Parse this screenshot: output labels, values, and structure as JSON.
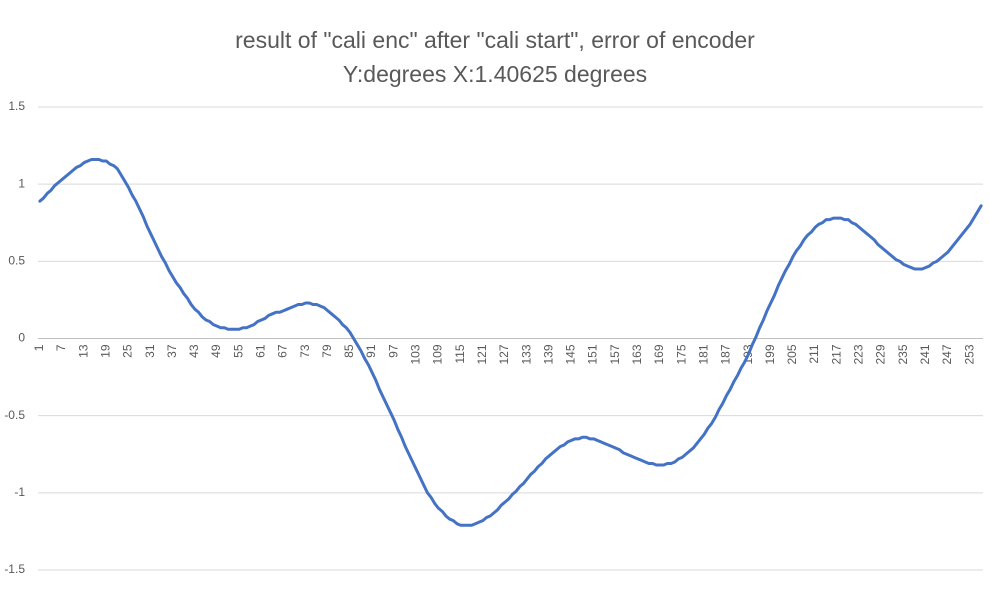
{
  "chart_data": {
    "type": "line",
    "title": "result of \"cali enc\" after \"cali start\", error of encoder",
    "subtitle": "Y:degrees X:1.40625 degrees",
    "categories": [
      1,
      null,
      null,
      null,
      null,
      null,
      7,
      null,
      null,
      null,
      null,
      null,
      13,
      null,
      null,
      null,
      null,
      null,
      19,
      null,
      null,
      null,
      null,
      null,
      25,
      null,
      null,
      null,
      null,
      null,
      31,
      null,
      null,
      null,
      null,
      null,
      37,
      null,
      null,
      null,
      null,
      null,
      43,
      null,
      null,
      null,
      null,
      null,
      49,
      null,
      null,
      null,
      null,
      null,
      55,
      null,
      null,
      null,
      null,
      null,
      61,
      null,
      null,
      null,
      null,
      null,
      67,
      null,
      null,
      null,
      null,
      null,
      73,
      null,
      null,
      null,
      null,
      null,
      79,
      null,
      null,
      null,
      null,
      null,
      85,
      null,
      null,
      null,
      null,
      null,
      91,
      null,
      null,
      null,
      null,
      null,
      97,
      null,
      null,
      null,
      null,
      null,
      103,
      null,
      null,
      null,
      null,
      null,
      109,
      null,
      null,
      null,
      null,
      null,
      115,
      null,
      null,
      null,
      null,
      null,
      121,
      null,
      null,
      null,
      null,
      null,
      127,
      null,
      null,
      null,
      null,
      null,
      133,
      null,
      null,
      null,
      null,
      null,
      139,
      null,
      null,
      null,
      null,
      null,
      145,
      null,
      null,
      null,
      null,
      null,
      151,
      null,
      null,
      null,
      null,
      null,
      157,
      null,
      null,
      null,
      null,
      null,
      163,
      null,
      null,
      null,
      null,
      null,
      169,
      null,
      null,
      null,
      null,
      null,
      175,
      null,
      null,
      null,
      null,
      null,
      181,
      null,
      null,
      null,
      null,
      null,
      187,
      null,
      null,
      null,
      null,
      null,
      193,
      null,
      null,
      null,
      null,
      null,
      199,
      null,
      null,
      null,
      null,
      null,
      205,
      null,
      null,
      null,
      null,
      null,
      211,
      null,
      null,
      null,
      null,
      null,
      217,
      null,
      null,
      null,
      null,
      null,
      223,
      null,
      null,
      null,
      null,
      null,
      229,
      null,
      null,
      null,
      null,
      null,
      235,
      null,
      null,
      null,
      null,
      null,
      241,
      null,
      null,
      null,
      null,
      null,
      247,
      null,
      null,
      null,
      null,
      null,
      253,
      null,
      null,
      null
    ],
    "series": [
      {
        "color": "#4472c4",
        "values": [
          0.89,
          0.91,
          0.94,
          0.96,
          0.99,
          1.01,
          1.03,
          1.05,
          1.07,
          1.09,
          1.11,
          1.12,
          1.14,
          1.15,
          1.16,
          1.16,
          1.16,
          1.15,
          1.15,
          1.13,
          1.12,
          1.1,
          1.06,
          1.02,
          0.98,
          0.93,
          0.89,
          0.84,
          0.79,
          0.73,
          0.68,
          0.63,
          0.58,
          0.53,
          0.49,
          0.44,
          0.4,
          0.36,
          0.33,
          0.29,
          0.26,
          0.22,
          0.19,
          0.17,
          0.14,
          0.12,
          0.11,
          0.09,
          0.08,
          0.07,
          0.07,
          0.06,
          0.06,
          0.06,
          0.06,
          0.07,
          0.07,
          0.08,
          0.09,
          0.11,
          0.12,
          0.13,
          0.15,
          0.16,
          0.17,
          0.17,
          0.18,
          0.19,
          0.2,
          0.21,
          0.22,
          0.22,
          0.23,
          0.23,
          0.22,
          0.22,
          0.21,
          0.2,
          0.18,
          0.16,
          0.14,
          0.12,
          0.09,
          0.07,
          0.04,
          0.0,
          -0.04,
          -0.08,
          -0.13,
          -0.17,
          -0.22,
          -0.27,
          -0.33,
          -0.38,
          -0.43,
          -0.48,
          -0.53,
          -0.59,
          -0.64,
          -0.7,
          -0.75,
          -0.8,
          -0.85,
          -0.9,
          -0.95,
          -1.0,
          -1.03,
          -1.07,
          -1.1,
          -1.12,
          -1.15,
          -1.17,
          -1.18,
          -1.2,
          -1.21,
          -1.21,
          -1.21,
          -1.21,
          -1.2,
          -1.19,
          -1.18,
          -1.16,
          -1.15,
          -1.13,
          -1.11,
          -1.08,
          -1.06,
          -1.04,
          -1.01,
          -0.99,
          -0.96,
          -0.94,
          -0.91,
          -0.88,
          -0.86,
          -0.83,
          -0.81,
          -0.78,
          -0.76,
          -0.74,
          -0.72,
          -0.7,
          -0.69,
          -0.67,
          -0.66,
          -0.65,
          -0.65,
          -0.64,
          -0.64,
          -0.65,
          -0.65,
          -0.66,
          -0.67,
          -0.68,
          -0.69,
          -0.7,
          -0.71,
          -0.72,
          -0.74,
          -0.75,
          -0.76,
          -0.77,
          -0.78,
          -0.79,
          -0.8,
          -0.81,
          -0.81,
          -0.82,
          -0.82,
          -0.82,
          -0.81,
          -0.81,
          -0.8,
          -0.78,
          -0.77,
          -0.75,
          -0.73,
          -0.71,
          -0.68,
          -0.65,
          -0.62,
          -0.58,
          -0.55,
          -0.51,
          -0.46,
          -0.42,
          -0.37,
          -0.33,
          -0.28,
          -0.24,
          -0.19,
          -0.15,
          -0.1,
          -0.04,
          0.01,
          0.07,
          0.12,
          0.18,
          0.23,
          0.28,
          0.34,
          0.39,
          0.44,
          0.48,
          0.53,
          0.57,
          0.6,
          0.64,
          0.67,
          0.69,
          0.72,
          0.74,
          0.75,
          0.77,
          0.77,
          0.78,
          0.78,
          0.78,
          0.77,
          0.77,
          0.75,
          0.74,
          0.72,
          0.7,
          0.68,
          0.66,
          0.64,
          0.61,
          0.59,
          0.57,
          0.55,
          0.53,
          0.51,
          0.5,
          0.48,
          0.47,
          0.46,
          0.45,
          0.45,
          0.45,
          0.46,
          0.47,
          0.49,
          0.5,
          0.52,
          0.54,
          0.56,
          0.59,
          0.62,
          0.65,
          0.68,
          0.71,
          0.74,
          0.78,
          0.82,
          0.86
        ]
      }
    ],
    "ylim": [
      -1.5,
      1.5
    ],
    "yticks": [
      -1.5,
      -1,
      -0.5,
      0,
      0.5,
      1,
      1.5
    ],
    "grid": true
  }
}
